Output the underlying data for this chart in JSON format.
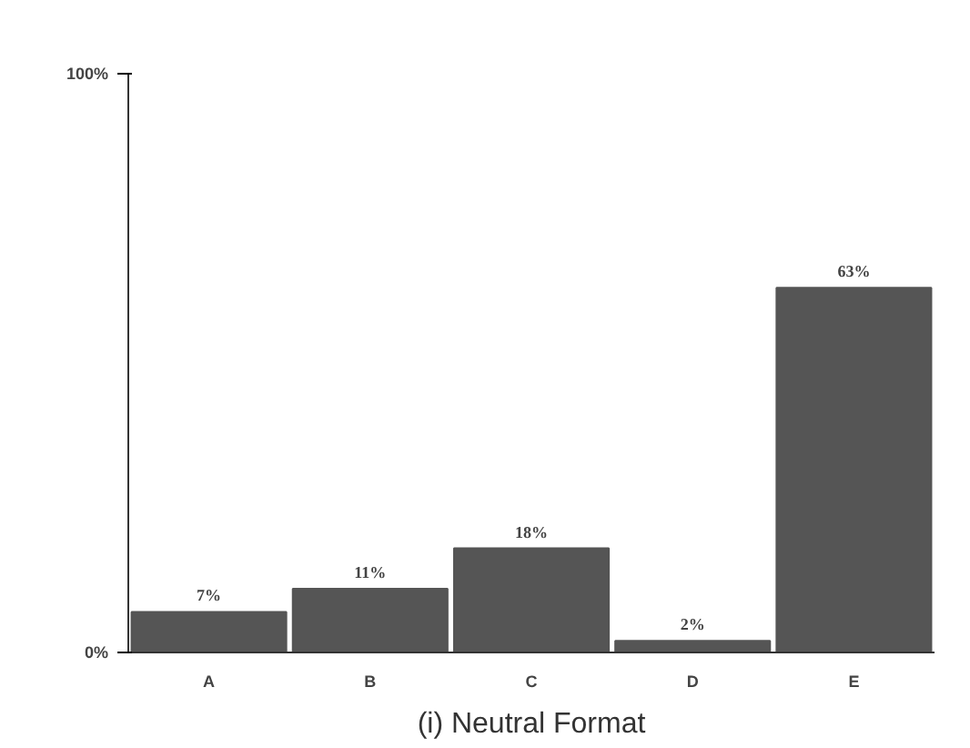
{
  "chart_data": {
    "type": "bar",
    "title": "(i) Neutral Format",
    "categories": [
      "A",
      "B",
      "C",
      "D",
      "E"
    ],
    "values": [
      7,
      11,
      18,
      2,
      63
    ],
    "value_labels": [
      "7%",
      "11%",
      "18%",
      "2%",
      "63%"
    ],
    "color": "#555555",
    "ylim": [
      0,
      100
    ],
    "yticks": [
      {
        "value": 0,
        "label": "0%"
      },
      {
        "value": 100,
        "label": "100%"
      }
    ],
    "grid": false
  }
}
